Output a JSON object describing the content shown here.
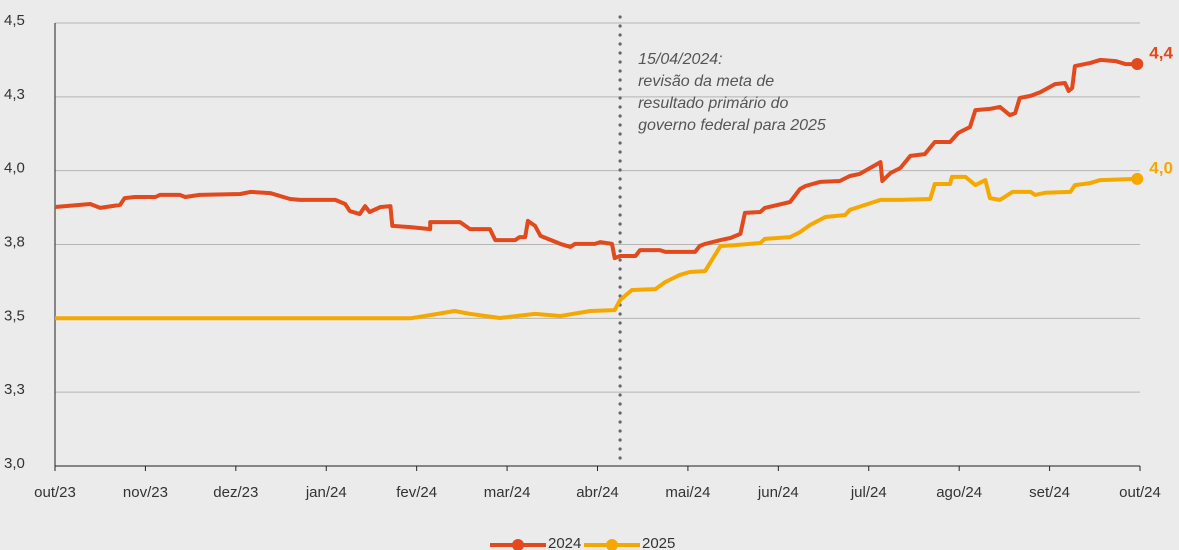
{
  "chart_data": {
    "type": "line",
    "xlim": [
      0,
      12
    ],
    "xticks": [
      {
        "value": 0,
        "label": "out/23"
      },
      {
        "value": 1,
        "label": "nov/23"
      },
      {
        "value": 2,
        "label": "dez/23"
      },
      {
        "value": 3,
        "label": "jan/24"
      },
      {
        "value": 4,
        "label": "fev/24"
      },
      {
        "value": 5,
        "label": "mar/24"
      },
      {
        "value": 6,
        "label": "abr/24"
      },
      {
        "value": 7,
        "label": "mai/24"
      },
      {
        "value": 8,
        "label": "jun/24"
      },
      {
        "value": 9,
        "label": "jul/24"
      },
      {
        "value": 10,
        "label": "ago/24"
      },
      {
        "value": 11,
        "label": "set/24"
      },
      {
        "value": 12,
        "label": "out/24"
      }
    ],
    "ylim": [
      3.0,
      4.5
    ],
    "yticks": [
      {
        "value": 3.0,
        "label": "3,0"
      },
      {
        "value": 3.25,
        "label": "3,3"
      },
      {
        "value": 3.5,
        "label": "3,5"
      },
      {
        "value": 3.75,
        "label": "3,8"
      },
      {
        "value": 4.0,
        "label": "4,0"
      },
      {
        "value": 4.25,
        "label": "4,3"
      },
      {
        "value": 4.5,
        "label": "4,5"
      }
    ],
    "grid": true,
    "annotation": {
      "x": 6.25,
      "lines": [
        "15/04/2024:",
        "revisão da meta de",
        "resultado primário do",
        "governo federal para 2025"
      ]
    },
    "series": [
      {
        "name": "2024",
        "color": "#e2491c",
        "end_label": "4,4",
        "x": [
          0,
          0.39,
          0.5,
          0.72,
          0.77,
          0.88,
          1.11,
          1.16,
          1.38,
          1.44,
          1.6,
          2.05,
          2.16,
          2.38,
          2.6,
          2.71,
          3.1,
          3.21,
          3.26,
          3.37,
          3.43,
          3.48,
          3.6,
          3.71,
          3.73,
          3.93,
          4.15,
          4.15,
          4.48,
          4.59,
          4.81,
          4.87,
          5.09,
          5.14,
          5.2,
          5.23,
          5.31,
          5.37,
          5.59,
          5.7,
          5.75,
          5.97,
          6.03,
          6.16,
          6.19,
          6.25,
          6.42,
          6.47,
          6.69,
          6.75,
          7.08,
          7.13,
          7.19,
          7.36,
          7.47,
          7.58,
          7.63,
          7.8,
          7.85,
          8.13,
          8.24,
          8.3,
          8.46,
          8.68,
          8.79,
          8.9,
          9.13,
          9.15,
          9.24,
          9.35,
          9.46,
          9.62,
          9.73,
          9.9,
          9.99,
          10.12,
          10.18,
          10.34,
          10.45,
          10.56,
          10.62,
          10.67,
          10.79,
          10.9,
          11.06,
          11.17,
          11.21,
          11.25,
          11.28,
          11.45,
          11.56,
          11.73,
          11.84,
          11.97
        ],
        "values": [
          3.877,
          3.887,
          3.874,
          3.884,
          3.907,
          3.911,
          3.911,
          3.918,
          3.918,
          3.911,
          3.918,
          3.921,
          3.928,
          3.924,
          3.904,
          3.901,
          3.901,
          3.887,
          3.863,
          3.853,
          3.88,
          3.86,
          3.877,
          3.88,
          3.813,
          3.809,
          3.802,
          3.826,
          3.826,
          3.802,
          3.802,
          3.765,
          3.765,
          3.775,
          3.775,
          3.83,
          3.813,
          3.779,
          3.752,
          3.742,
          3.752,
          3.752,
          3.758,
          3.752,
          3.704,
          3.711,
          3.711,
          3.731,
          3.731,
          3.725,
          3.725,
          3.745,
          3.752,
          3.765,
          3.772,
          3.786,
          3.857,
          3.86,
          3.874,
          3.894,
          3.938,
          3.948,
          3.962,
          3.965,
          3.982,
          3.989,
          4.029,
          3.965,
          3.992,
          4.009,
          4.05,
          4.056,
          4.097,
          4.097,
          4.128,
          4.148,
          4.205,
          4.209,
          4.216,
          4.188,
          4.195,
          4.246,
          4.253,
          4.266,
          4.293,
          4.297,
          4.27,
          4.28,
          4.354,
          4.365,
          4.375,
          4.371,
          4.361,
          4.361
        ]
      },
      {
        "name": "2025",
        "color": "#f5a800",
        "end_label": "4,0",
        "x": [
          0,
          3.93,
          4.15,
          4.42,
          4.59,
          4.92,
          5.31,
          5.59,
          5.92,
          6.19,
          6.25,
          6.38,
          6.64,
          6.75,
          6.91,
          7.02,
          7.19,
          7.36,
          7.52,
          7.8,
          7.85,
          8.13,
          8.24,
          8.35,
          8.52,
          8.74,
          8.79,
          8.96,
          9.13,
          9.35,
          9.68,
          9.73,
          9.9,
          9.92,
          10.07,
          10.18,
          10.29,
          10.34,
          10.45,
          10.59,
          10.79,
          10.84,
          10.95,
          11.23,
          11.28,
          11.45,
          11.56,
          11.97
        ],
        "values": [
          3.5,
          3.5,
          3.511,
          3.525,
          3.515,
          3.501,
          3.515,
          3.508,
          3.525,
          3.528,
          3.562,
          3.596,
          3.599,
          3.623,
          3.647,
          3.657,
          3.66,
          3.745,
          3.748,
          3.755,
          3.769,
          3.775,
          3.792,
          3.816,
          3.843,
          3.85,
          3.867,
          3.884,
          3.901,
          3.901,
          3.904,
          3.955,
          3.955,
          3.979,
          3.979,
          3.951,
          3.968,
          3.907,
          3.901,
          3.928,
          3.928,
          3.918,
          3.925,
          3.928,
          3.951,
          3.958,
          3.968,
          3.972
        ]
      }
    ]
  }
}
